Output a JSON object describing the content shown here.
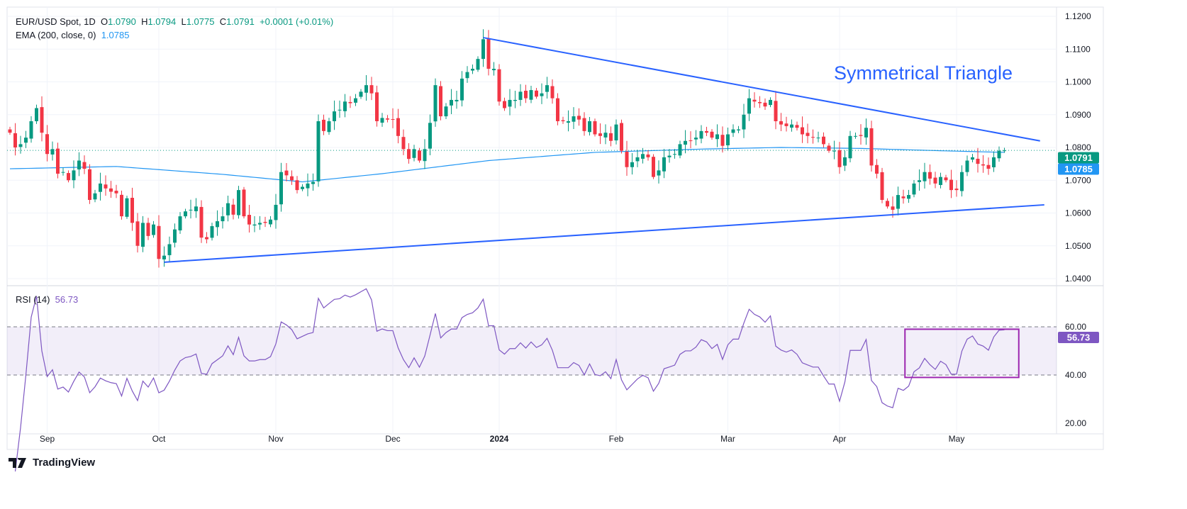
{
  "header": {
    "symbol": "EUR/USD Spot, 1D",
    "o_label": "O",
    "o": "1.0790",
    "h_label": "H",
    "h": "1.0794",
    "l_label": "L",
    "l": "1.0775",
    "c_label": "C",
    "c": "1.0791",
    "change": "+0.0001 (+0.01%)"
  },
  "ema_legend": {
    "label": "EMA (200, close, 0)",
    "value": "1.0785"
  },
  "rsi_legend": {
    "label": "RSI (14)",
    "value": "56.73"
  },
  "annotation": "Symmetrical Triangle",
  "brand": "TradingView",
  "colors": {
    "up": "#089981",
    "down": "#f23645",
    "ema": "#2196f3",
    "trend": "#2962ff",
    "rsi": "#7e57c2"
  },
  "chart_data": [
    {
      "type": "candlestick",
      "title": "EUR/USD Spot, 1D",
      "price_ticks": [
        "1.1200",
        "1.1100",
        "1.1000",
        "1.0900",
        "1.0800",
        "1.0700",
        "1.0600",
        "1.0500",
        "1.0400"
      ],
      "ylim": [
        1.04,
        1.12
      ],
      "last_price": "1.0791",
      "ema_price": "1.0785",
      "month_labels": [
        {
          "label": "Sep",
          "i": 7
        },
        {
          "label": "Oct",
          "i": 28
        },
        {
          "label": "Nov",
          "i": 50
        },
        {
          "label": "Dec",
          "i": 72
        },
        {
          "label": "2024",
          "i": 92
        },
        {
          "label": "Feb",
          "i": 114
        },
        {
          "label": "Mar",
          "i": 135
        },
        {
          "label": "Apr",
          "i": 156
        },
        {
          "label": "May",
          "i": 178
        }
      ],
      "closes": [
        1.0845,
        1.08,
        1.081,
        1.083,
        1.088,
        1.092,
        1.0845,
        1.078,
        1.0795,
        1.072,
        1.0725,
        1.07,
        1.073,
        1.076,
        1.0735,
        1.064,
        1.066,
        1.069,
        1.0675,
        1.0665,
        1.066,
        1.059,
        1.0645,
        1.057,
        1.05,
        1.057,
        1.053,
        1.0565,
        1.046,
        1.047,
        1.0505,
        1.055,
        1.059,
        1.0605,
        1.061,
        1.062,
        1.0525,
        1.052,
        1.056,
        1.0575,
        1.059,
        1.063,
        1.0595,
        1.067,
        1.059,
        1.0565,
        1.0565,
        1.057,
        1.057,
        1.058,
        1.0625,
        1.0725,
        1.0715,
        1.07,
        1.067,
        1.068,
        1.069,
        1.0695,
        1.088,
        1.085,
        1.088,
        1.091,
        1.0915,
        1.094,
        1.0935,
        1.095,
        1.097,
        1.099,
        1.0965,
        1.088,
        1.089,
        1.0885,
        1.0885,
        1.0835,
        1.0795,
        1.0765,
        1.0795,
        1.076,
        1.0795,
        1.0875,
        1.099,
        1.0895,
        1.0925,
        1.0945,
        1.0945,
        1.101,
        1.103,
        1.104,
        1.107,
        1.113,
        1.104,
        1.104,
        1.094,
        1.092,
        1.0945,
        1.0945,
        1.097,
        1.095,
        1.0975,
        1.0955,
        1.0965,
        1.099,
        1.095,
        1.088,
        1.088,
        1.088,
        1.0895,
        1.0885,
        1.085,
        1.088,
        1.084,
        1.0835,
        1.0845,
        1.082,
        1.087,
        1.079,
        1.074,
        1.0755,
        1.077,
        1.078,
        1.077,
        1.071,
        1.073,
        1.077,
        1.0775,
        1.078,
        1.081,
        1.082,
        1.082,
        1.083,
        1.085,
        1.0845,
        1.083,
        1.084,
        1.0805,
        1.084,
        1.0855,
        1.0855,
        1.09,
        1.095,
        1.094,
        1.0935,
        1.0925,
        1.0945,
        1.088,
        1.087,
        1.0865,
        1.087,
        1.086,
        1.084,
        1.0835,
        1.083,
        1.083,
        1.081,
        1.079,
        1.079,
        1.074,
        1.077,
        1.0835,
        1.0835,
        1.0835,
        1.086,
        1.0745,
        1.072,
        1.064,
        1.062,
        1.061,
        1.0655,
        1.0645,
        1.0655,
        1.069,
        1.07,
        1.0725,
        1.0705,
        1.069,
        1.071,
        1.07,
        1.067,
        1.067,
        1.0725,
        1.076,
        1.077,
        1.075,
        1.0745,
        1.0735,
        1.077,
        1.079,
        1.0791
      ],
      "ema": [
        [
          0,
          1.0735
        ],
        [
          20,
          1.0742
        ],
        [
          40,
          1.0718
        ],
        [
          55,
          1.0695
        ],
        [
          70,
          1.072
        ],
        [
          90,
          1.076
        ],
        [
          110,
          1.0785
        ],
        [
          130,
          1.0795
        ],
        [
          145,
          1.08
        ],
        [
          160,
          1.0797
        ],
        [
          175,
          1.079
        ],
        [
          187,
          1.0785
        ]
      ],
      "trendlines": [
        {
          "name": "upper",
          "from": [
            89,
            1.1135
          ],
          "to": [
            193.7,
            1.082
          ]
        },
        {
          "name": "lower",
          "from": [
            29,
            1.045
          ],
          "to": [
            194.5,
            1.0625
          ]
        }
      ]
    },
    {
      "type": "line",
      "title": "RSI (14)",
      "ylim": [
        15,
        75
      ],
      "ticks": [
        "60.00",
        "40.00",
        "20.00"
      ],
      "band": [
        40,
        60
      ],
      "last": "56.73",
      "highlight_box": {
        "i_from": 168.3,
        "i_to": 189.7,
        "y_from": 39,
        "y_to": 59
      }
    }
  ]
}
